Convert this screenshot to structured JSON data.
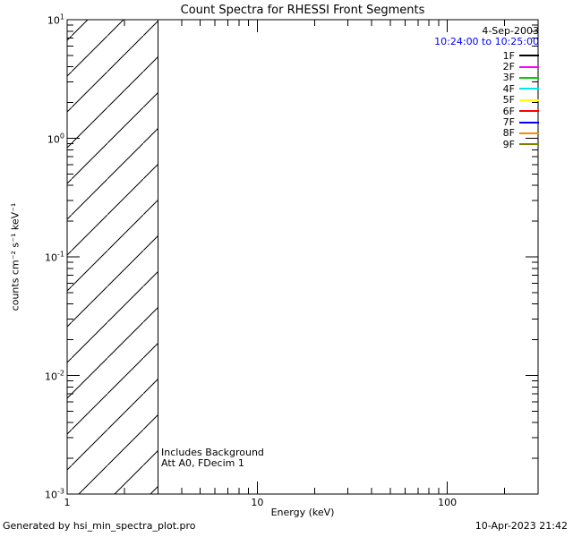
{
  "chart_data": {
    "type": "line",
    "title": "Count Spectra for RHESSI Front Segments",
    "xlabel": "Energy (keV)",
    "ylabel": "counts cm⁻² s⁻¹ keV⁻¹",
    "xscale": "log",
    "yscale": "log",
    "xlim": [
      1,
      300
    ],
    "ylim": [
      0.001,
      10
    ],
    "x_major_ticks": [
      1,
      10,
      100
    ],
    "x_tick_labels": [
      "1",
      "10",
      "100"
    ],
    "y_major_ticks": [
      10,
      1,
      0.1,
      0.01,
      0.001
    ],
    "grid": false,
    "series": [],
    "hatched_region": {
      "x_start": 1,
      "x_end": 3,
      "style": "diagonal-hatch"
    },
    "legend": {
      "position": "top-right",
      "date": "4-Sep-2003",
      "time_range": "10:24:00 to 10:25:00",
      "time_color": "#0000ff",
      "entries": [
        {
          "label": "1F",
          "color": "#000000"
        },
        {
          "label": "2F",
          "color": "#ff00ff"
        },
        {
          "label": "3F",
          "color": "#00cc00"
        },
        {
          "label": "4F",
          "color": "#00e5e5"
        },
        {
          "label": "5F",
          "color": "#ffff00"
        },
        {
          "label": "6F",
          "color": "#ff0000"
        },
        {
          "label": "7F",
          "color": "#0000ff"
        },
        {
          "label": "8F",
          "color": "#ff8800"
        },
        {
          "label": "9F",
          "color": "#808000"
        }
      ]
    },
    "annotations": [
      "Includes Background",
      "Att A0, FDecim 1"
    ]
  },
  "footer": {
    "left": "Generated by hsi_min_spectra_plot.pro",
    "right": "10-Apr-2023 21:42"
  },
  "colors": {
    "background": "#ffffff",
    "foreground": "#000000"
  }
}
